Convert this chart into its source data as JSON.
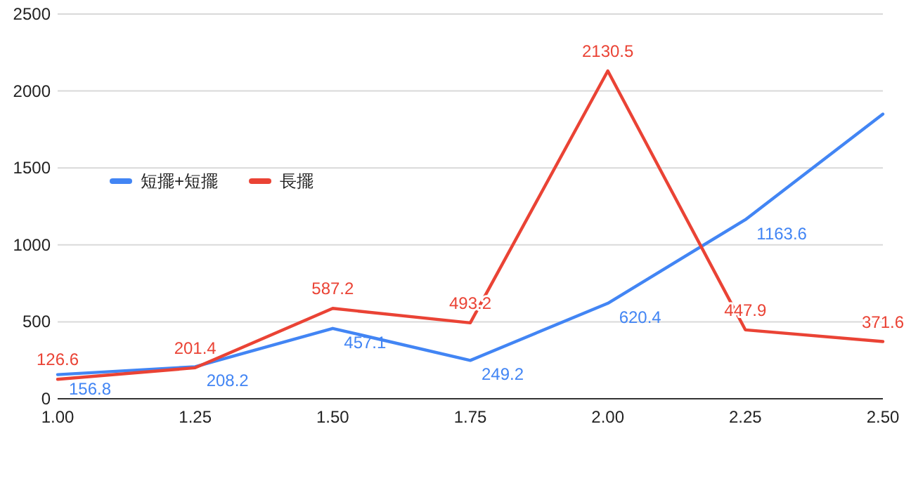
{
  "chart_data": {
    "type": "line",
    "x": [
      1.0,
      1.25,
      1.5,
      1.75,
      2.0,
      2.25,
      2.5
    ],
    "series": [
      {
        "name": "短擺+短擺",
        "color": "#4285f4",
        "values": [
          156.8,
          208.2,
          457.1,
          249.2,
          620.4,
          1163.6,
          1850
        ],
        "value_labels": [
          "156.8",
          "208.2",
          "457.1",
          "249.2",
          "620.4",
          "1163.6",
          null
        ]
      },
      {
        "name": "長擺",
        "color": "#ea4335",
        "values": [
          126.6,
          201.4,
          587.2,
          493.2,
          2130.5,
          447.9,
          371.6
        ],
        "value_labels": [
          "126.6",
          "201.4",
          "587.2",
          "493.2",
          "2130.5",
          "447.9",
          "371.6"
        ]
      }
    ],
    "xlim": [
      1.0,
      2.5
    ],
    "xticks": [
      {
        "value": 1.0,
        "label": "1.00"
      },
      {
        "value": 1.25,
        "label": "1.25"
      },
      {
        "value": 1.5,
        "label": "1.50"
      },
      {
        "value": 1.75,
        "label": "1.75"
      },
      {
        "value": 2.0,
        "label": "2.00"
      },
      {
        "value": 2.25,
        "label": "2.25"
      },
      {
        "value": 2.5,
        "label": "2.50"
      }
    ],
    "ylim": [
      0,
      2500
    ],
    "yticks": [
      0,
      500,
      1000,
      1500,
      2000,
      2500
    ],
    "grid": "y",
    "legend": "left",
    "marker": "none",
    "line_style": "solid"
  }
}
